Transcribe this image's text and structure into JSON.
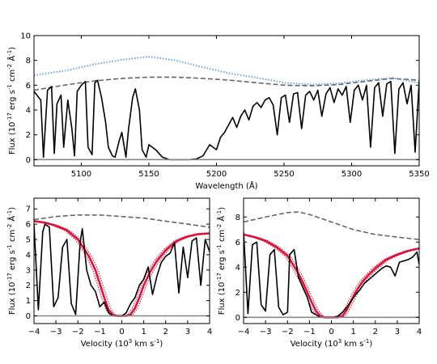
{
  "chart_data": [
    {
      "type": "line",
      "panel": "top",
      "xlabel": "Wavelength (Å)",
      "ylabel": "Flux (10^-17 erg s^-1 cm^-2 Å^-1)",
      "xlim": [
        5065,
        5350
      ],
      "ylim": [
        -0.5,
        10
      ],
      "xticks": [
        5100,
        5150,
        5200,
        5250,
        5300,
        5350
      ],
      "yticks": [
        0,
        2,
        4,
        6,
        8,
        10
      ],
      "grid": false,
      "series": [
        {
          "role": "continuum",
          "color": "#666666",
          "style": "dashed",
          "x": [
            5065,
            5090,
            5110,
            5130,
            5150,
            5170,
            5190,
            5210,
            5230,
            5250,
            5270,
            5290,
            5310,
            5330,
            5350
          ],
          "y": [
            5.6,
            6.05,
            6.35,
            6.55,
            6.65,
            6.65,
            6.55,
            6.4,
            6.2,
            6.0,
            5.95,
            6.05,
            6.3,
            6.55,
            6.4
          ]
        },
        {
          "role": "template",
          "color": "#5fa8e8",
          "style": "dotted",
          "x": [
            5065,
            5090,
            5110,
            5130,
            5150,
            5170,
            5190,
            5210,
            5230,
            5250,
            5270,
            5290,
            5310,
            5330,
            5350
          ],
          "y": [
            6.8,
            7.2,
            7.7,
            8.05,
            8.3,
            8.0,
            7.45,
            6.95,
            6.6,
            6.2,
            6.05,
            6.15,
            6.4,
            6.6,
            6.2
          ]
        },
        {
          "role": "observed",
          "color": "#000000",
          "style": "solid",
          "x": [
            5065,
            5070,
            5072,
            5075,
            5078,
            5080,
            5082,
            5085,
            5087,
            5090,
            5093,
            5095,
            5097,
            5100,
            5103,
            5105,
            5108,
            5110,
            5112,
            5115,
            5118,
            5120,
            5123,
            5125,
            5128,
            5130,
            5133,
            5135,
            5138,
            5140,
            5143,
            5145,
            5148,
            5150,
            5155,
            5160,
            5165,
            5170,
            5175,
            5180,
            5185,
            5190,
            5195,
            5200,
            5203,
            5206,
            5209,
            5212,
            5215,
            5218,
            5221,
            5224,
            5227,
            5230,
            5233,
            5236,
            5239,
            5242,
            5245,
            5248,
            5251,
            5254,
            5257,
            5260,
            5263,
            5266,
            5269,
            5272,
            5275,
            5278,
            5281,
            5284,
            5287,
            5290,
            5293,
            5296,
            5299,
            5302,
            5305,
            5308,
            5311,
            5314,
            5317,
            5320,
            5323,
            5326,
            5329,
            5332,
            5335,
            5338,
            5341,
            5344,
            5347,
            5350
          ],
          "y": [
            5.5,
            4.8,
            0.2,
            5.6,
            5.9,
            0.5,
            4.5,
            5.2,
            1.0,
            4.8,
            2.5,
            0.3,
            5.5,
            6.0,
            6.3,
            1.0,
            0.4,
            6.2,
            6.4,
            5.0,
            3.0,
            1.0,
            0.3,
            0.2,
            1.5,
            2.2,
            0.2,
            2.5,
            5.0,
            5.7,
            4.0,
            0.8,
            0.2,
            1.2,
            0.8,
            0.2,
            0.0,
            0.0,
            0.0,
            0.0,
            0.05,
            0.3,
            1.2,
            0.8,
            1.8,
            2.2,
            2.8,
            3.4,
            2.6,
            3.5,
            4.0,
            3.2,
            4.3,
            4.6,
            4.2,
            4.8,
            5.0,
            4.4,
            2.0,
            5.0,
            5.2,
            3.0,
            5.3,
            5.4,
            2.5,
            5.2,
            5.5,
            4.8,
            5.6,
            3.5,
            5.3,
            5.8,
            4.6,
            5.7,
            5.2,
            5.9,
            3.0,
            5.6,
            6.0,
            4.8,
            6.0,
            1.0,
            5.8,
            6.2,
            3.5,
            6.1,
            6.3,
            0.5,
            5.7,
            6.2,
            4.5,
            6.0,
            0.6,
            6.3
          ]
        },
        {
          "role": "zero",
          "color": "#888888",
          "style": "solid",
          "x": [
            5065,
            5350
          ],
          "y": [
            0.0,
            0.0
          ]
        }
      ]
    },
    {
      "type": "line",
      "panel": "bottom-left",
      "xlabel": "Velocity (10^3 km s^-1)",
      "ylabel": "Flux (10^-17 erg s^-1 cm^-2 Å^-1)",
      "xlim": [
        -4,
        4
      ],
      "ylim": [
        -0.5,
        7.7
      ],
      "xticks": [
        -4,
        -3,
        -2,
        -1,
        0,
        1,
        2,
        3,
        4
      ],
      "yticks": [
        0,
        1,
        2,
        3,
        4,
        5,
        6,
        7
      ],
      "grid": false,
      "series": [
        {
          "role": "continuum",
          "color": "#666666",
          "style": "dashed",
          "x": [
            -4,
            -3,
            -2,
            -1,
            0,
            1,
            2,
            3,
            4
          ],
          "y": [
            6.3,
            6.5,
            6.6,
            6.6,
            6.5,
            6.4,
            6.2,
            6.0,
            5.8
          ]
        },
        {
          "role": "model",
          "color": "#dc143c",
          "style": "solid",
          "x": [
            -4,
            -3.5,
            -3,
            -2.5,
            -2,
            -1.5,
            -1.2,
            -1,
            -0.8,
            -0.6,
            -0.4,
            -0.2,
            0,
            0.2,
            0.4,
            0.6,
            0.8,
            1,
            1.3,
            1.6,
            2,
            2.5,
            3,
            3.5,
            4
          ],
          "y": [
            6.2,
            6.1,
            5.9,
            5.6,
            5.0,
            3.9,
            3.0,
            2.1,
            1.2,
            0.4,
            0.05,
            0.0,
            0.0,
            0.0,
            0.1,
            0.5,
            1.2,
            2.0,
            2.9,
            3.6,
            4.3,
            4.9,
            5.2,
            5.35,
            5.4
          ]
        },
        {
          "role": "observed",
          "color": "#000000",
          "style": "solid",
          "x": [
            -4,
            -3.8,
            -3.6,
            -3.5,
            -3.3,
            -3.1,
            -2.9,
            -2.7,
            -2.5,
            -2.3,
            -2.1,
            -1.9,
            -1.8,
            -1.6,
            -1.4,
            -1.2,
            -1.0,
            -0.8,
            -0.6,
            -0.4,
            -0.2,
            0,
            0.2,
            0.4,
            0.6,
            0.8,
            1.0,
            1.2,
            1.4,
            1.6,
            1.8,
            2.0,
            2.2,
            2.4,
            2.6,
            2.8,
            3.0,
            3.2,
            3.4,
            3.6,
            3.8,
            4.0
          ],
          "y": [
            6.0,
            0.4,
            5.5,
            6.0,
            5.8,
            0.6,
            1.2,
            4.5,
            5.0,
            0.8,
            0.1,
            4.8,
            5.7,
            3.0,
            2.0,
            1.6,
            0.6,
            0.9,
            0.2,
            0.0,
            0.0,
            0.0,
            0.2,
            0.8,
            1.2,
            2.0,
            2.4,
            3.2,
            1.4,
            2.6,
            3.5,
            3.9,
            4.1,
            4.8,
            1.5,
            4.5,
            2.5,
            4.9,
            5.1,
            2.0,
            5.0,
            4.2
          ]
        },
        {
          "role": "zero",
          "color": "#888888",
          "style": "solid",
          "x": [
            -4,
            4
          ],
          "y": [
            0.0,
            0.0
          ]
        }
      ]
    },
    {
      "type": "line",
      "panel": "bottom-right",
      "xlabel": "Velocity (10^3 km s^-1)",
      "ylabel": "Flux (10^-17 erg s^-1 cm^-2 Å^-1)",
      "xlim": [
        -4,
        4
      ],
      "ylim": [
        -0.5,
        9.5
      ],
      "xticks": [
        -4,
        -3,
        -2,
        -1,
        0,
        1,
        2,
        3,
        4
      ],
      "yticks": [
        0,
        2,
        4,
        6,
        8
      ],
      "grid": false,
      "series": [
        {
          "role": "continuum",
          "color": "#666666",
          "style": "dashed",
          "x": [
            -4,
            -3,
            -2,
            -1.5,
            -1,
            0,
            1,
            2,
            3,
            4
          ],
          "y": [
            7.6,
            8.0,
            8.35,
            8.4,
            8.2,
            7.6,
            7.0,
            6.6,
            6.4,
            6.2
          ]
        },
        {
          "role": "model",
          "color": "#dc143c",
          "style": "solid",
          "x": [
            -4,
            -3.5,
            -3,
            -2.5,
            -2,
            -1.6,
            -1.3,
            -1.1,
            -0.9,
            -0.7,
            -0.5,
            -0.3,
            0,
            0.3,
            0.5,
            0.7,
            0.9,
            1.1,
            1.4,
            1.7,
            2,
            2.5,
            3,
            3.5,
            4
          ],
          "y": [
            6.6,
            6.4,
            6.1,
            5.6,
            4.9,
            3.8,
            2.8,
            2.0,
            1.2,
            0.5,
            0.1,
            0.0,
            0.0,
            0.0,
            0.1,
            0.6,
            1.3,
            2.0,
            2.8,
            3.4,
            3.9,
            4.6,
            5.0,
            5.3,
            5.5
          ]
        },
        {
          "role": "observed",
          "color": "#000000",
          "style": "solid",
          "x": [
            -4,
            -3.8,
            -3.6,
            -3.4,
            -3.2,
            -3.0,
            -2.8,
            -2.6,
            -2.4,
            -2.2,
            -2.0,
            -1.9,
            -1.7,
            -1.5,
            -1.3,
            -1.1,
            -0.9,
            -0.7,
            -0.5,
            -0.3,
            -0.1,
            0.1,
            0.3,
            0.5,
            0.7,
            0.9,
            1.1,
            1.3,
            1.5,
            1.7,
            1.9,
            2.1,
            2.3,
            2.5,
            2.7,
            2.9,
            3.1,
            3.3,
            3.5,
            3.7,
            3.9,
            4.0
          ],
          "y": [
            6.8,
            0.3,
            5.8,
            6.0,
            1.0,
            0.5,
            5.0,
            5.4,
            0.8,
            0.2,
            0.4,
            5.0,
            5.4,
            3.2,
            2.4,
            1.6,
            0.4,
            0.2,
            0.0,
            0.0,
            0.0,
            0.0,
            0.1,
            0.4,
            0.8,
            1.3,
            1.8,
            2.2,
            2.7,
            3.0,
            3.3,
            3.6,
            3.9,
            4.1,
            4.0,
            3.3,
            4.4,
            4.5,
            4.6,
            4.8,
            5.2,
            4.2
          ]
        },
        {
          "role": "zero",
          "color": "#888888",
          "style": "solid",
          "x": [
            -4,
            4
          ],
          "y": [
            0.0,
            0.0
          ]
        }
      ]
    }
  ]
}
